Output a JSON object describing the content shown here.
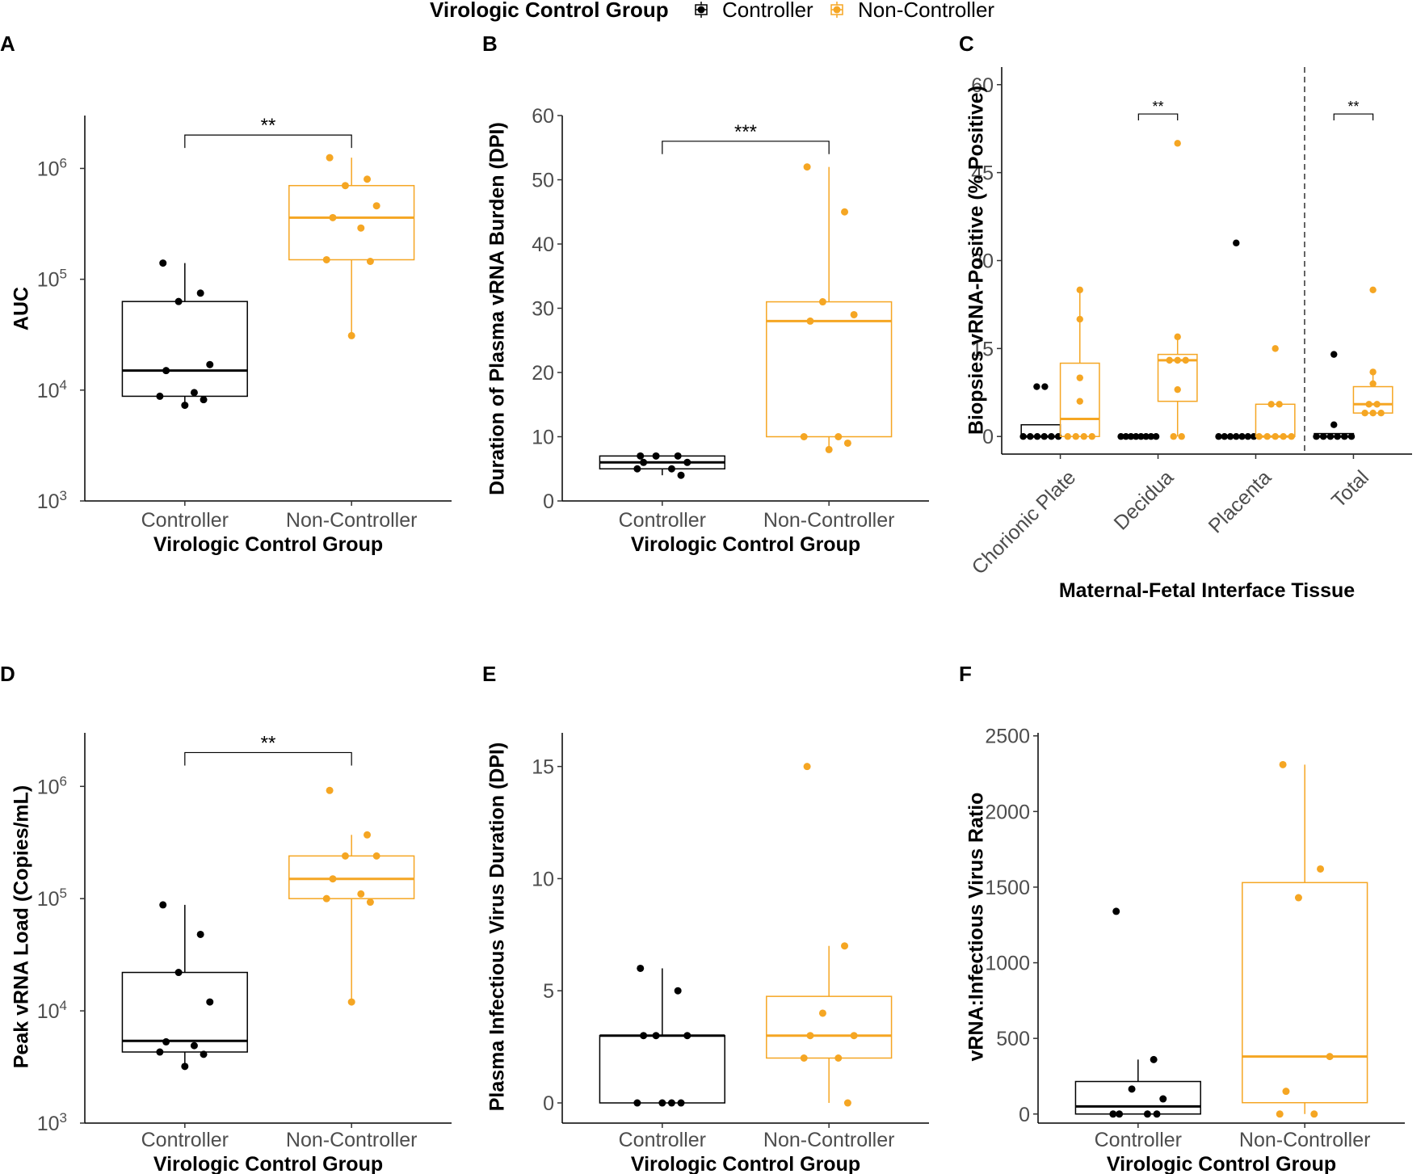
{
  "legend": {
    "title": "Virologic Control Group",
    "items": [
      {
        "label": "Controller",
        "color": "#000000"
      },
      {
        "label": "Non-Controller",
        "color": "#f5a623"
      }
    ]
  },
  "chart_data": [
    {
      "panel": "A",
      "type": "box",
      "scale": "log",
      "xlabel": "Virologic Control Group",
      "ylabel": "AUC",
      "ylim": [
        1000,
        3000000
      ],
      "yticks": [
        {
          "value": 1000,
          "base": "10",
          "exp": "3"
        },
        {
          "value": 10000,
          "base": "10",
          "exp": "4"
        },
        {
          "value": 100000,
          "base": "10",
          "exp": "5"
        },
        {
          "value": 1000000,
          "base": "10",
          "exp": "6"
        }
      ],
      "categories": [
        "Controller",
        "Non-Controller"
      ],
      "groups": [
        {
          "name": "Controller",
          "color": "#000000",
          "box": {
            "q1": 8800,
            "median": 15000,
            "q3": 63000,
            "whisker_low": 7300,
            "whisker_high": 140000
          },
          "points": [
            140000,
            75000,
            63000,
            17000,
            15000,
            9500,
            8800,
            8200,
            7300
          ]
        },
        {
          "name": "Non-Controller",
          "color": "#f5a623",
          "box": {
            "q1": 150000,
            "median": 360000,
            "q3": 700000,
            "whisker_low": 31000,
            "whisker_high": 1250000
          },
          "points": [
            1250000,
            800000,
            700000,
            460000,
            360000,
            290000,
            150000,
            145000,
            31000
          ]
        }
      ],
      "significance": [
        {
          "from": 0,
          "to": 1,
          "label": "**",
          "at": 2000000
        }
      ]
    },
    {
      "panel": "B",
      "type": "box",
      "scale": "linear",
      "xlabel": "Virologic Control Group",
      "ylabel": "Duration of Plasma vRNA Burden (DPI)",
      "ylim": [
        0,
        60
      ],
      "yticks": [
        0,
        10,
        20,
        30,
        40,
        50,
        60
      ],
      "categories": [
        "Controller",
        "Non-Controller"
      ],
      "groups": [
        {
          "name": "Controller",
          "color": "#000000",
          "box": {
            "q1": 5,
            "median": 6,
            "q3": 7,
            "whisker_low": 4,
            "whisker_high": 7
          },
          "points": [
            7,
            7,
            7,
            6,
            6,
            5,
            5,
            4
          ]
        },
        {
          "name": "Non-Controller",
          "color": "#f5a623",
          "box": {
            "q1": 10,
            "median": 28,
            "q3": 31,
            "whisker_low": 8,
            "whisker_high": 52
          },
          "points": [
            52,
            45,
            31,
            29,
            28,
            10,
            10,
            9,
            8
          ]
        }
      ],
      "significance": [
        {
          "from": 0,
          "to": 1,
          "label": "***",
          "at": 56
        }
      ]
    },
    {
      "panel": "C",
      "type": "box",
      "scale": "linear",
      "xlabel": "Maternal-Fetal Interface Tissue",
      "ylabel": "Biopsies vRNA-Positive (% Positive)",
      "ylim": [
        -3,
        63
      ],
      "yticks": [
        0,
        15,
        30,
        45,
        60
      ],
      "categories": [
        "Chorionic Plate",
        "Decidua",
        "Placenta",
        "Total"
      ],
      "divider_after": 2,
      "series": [
        {
          "name": "Controller",
          "color": "#000000",
          "boxes": [
            {
              "q1": 0,
              "median": 0,
              "q3": 2,
              "whisker_low": 0,
              "whisker_high": 2
            },
            {
              "q1": 0,
              "median": 0,
              "q3": 0,
              "whisker_low": 0,
              "whisker_high": 0
            },
            {
              "q1": 0,
              "median": 0,
              "q3": 0,
              "whisker_low": 0,
              "whisker_high": 0
            },
            {
              "q1": 0,
              "median": 0,
              "q3": 0.5,
              "whisker_low": 0,
              "whisker_high": 0.5
            }
          ],
          "points": [
            [
              8.5,
              8.5,
              0,
              0,
              0,
              0,
              0,
              0
            ],
            [
              0,
              0,
              0,
              0,
              0,
              0,
              0,
              0
            ],
            [
              33,
              0,
              0,
              0,
              0,
              0,
              0,
              0
            ],
            [
              14,
              2,
              0,
              0,
              0,
              0,
              0,
              0
            ]
          ]
        },
        {
          "name": "Non-Controller",
          "color": "#f5a623",
          "boxes": [
            {
              "q1": 0,
              "median": 3,
              "q3": 12.5,
              "whisker_low": 0,
              "whisker_high": 25
            },
            {
              "q1": 6,
              "median": 13,
              "q3": 14,
              "whisker_low": 0,
              "whisker_high": 17
            },
            {
              "q1": 0,
              "median": 0,
              "q3": 5.5,
              "whisker_low": 0,
              "whisker_high": 5.5
            },
            {
              "q1": 4,
              "median": 5.5,
              "q3": 8.5,
              "whisker_low": 3.5,
              "whisker_high": 11
            }
          ],
          "points": [
            [
              25,
              20,
              10,
              6,
              0,
              0,
              0,
              0
            ],
            [
              50,
              17,
              13,
              13,
              13,
              8,
              0,
              0
            ],
            [
              15,
              5.5,
              5.5,
              0,
              0,
              0,
              0,
              0
            ],
            [
              25,
              11,
              9,
              5.5,
              5.5,
              4,
              4,
              4
            ]
          ]
        }
      ],
      "significance": [
        {
          "category": 1,
          "label": "**",
          "at": 55
        },
        {
          "category": 3,
          "label": "**",
          "at": 55
        }
      ]
    },
    {
      "panel": "D",
      "type": "box",
      "scale": "log",
      "xlabel": "Virologic Control Group",
      "ylabel": "Peak vRNA Load (Copies/mL)",
      "ylim": [
        1000,
        3000000
      ],
      "yticks": [
        {
          "value": 1000,
          "base": "10",
          "exp": "3"
        },
        {
          "value": 10000,
          "base": "10",
          "exp": "4"
        },
        {
          "value": 100000,
          "base": "10",
          "exp": "5"
        },
        {
          "value": 1000000,
          "base": "10",
          "exp": "6"
        }
      ],
      "categories": [
        "Controller",
        "Non-Controller"
      ],
      "groups": [
        {
          "name": "Controller",
          "color": "#000000",
          "box": {
            "q1": 4300,
            "median": 5400,
            "q3": 22000,
            "whisker_low": 3200,
            "whisker_high": 88000
          },
          "points": [
            88000,
            48000,
            22000,
            12000,
            5300,
            4900,
            4300,
            4100,
            3200
          ]
        },
        {
          "name": "Non-Controller",
          "color": "#f5a623",
          "box": {
            "q1": 100000,
            "median": 150000,
            "q3": 240000,
            "whisker_low": 12000,
            "whisker_high": 370000
          },
          "points": [
            920000,
            370000,
            240000,
            240000,
            150000,
            110000,
            100000,
            93000,
            12000
          ]
        }
      ],
      "significance": [
        {
          "from": 0,
          "to": 1,
          "label": "**",
          "at": 2000000
        }
      ]
    },
    {
      "panel": "E",
      "type": "box",
      "scale": "linear",
      "xlabel": "Virologic Control Group",
      "ylabel": "Plasma Infectious Virus Duration (DPI)",
      "ylim": [
        -0.9,
        16.5
      ],
      "yticks": [
        0,
        5,
        10,
        15
      ],
      "categories": [
        "Controller",
        "Non-Controller"
      ],
      "groups": [
        {
          "name": "Controller",
          "color": "#000000",
          "box": {
            "q1": 0,
            "median": 3,
            "q3": 3,
            "whisker_low": 0,
            "whisker_high": 6
          },
          "points": [
            6,
            5,
            3,
            3,
            3,
            0,
            0,
            0,
            0
          ]
        },
        {
          "name": "Non-Controller",
          "color": "#f5a623",
          "box": {
            "q1": 2,
            "median": 3,
            "q3": 4.75,
            "whisker_low": 0,
            "whisker_high": 7
          },
          "points": [
            15,
            7,
            4,
            3,
            3,
            2,
            2,
            0
          ]
        }
      ],
      "significance": []
    },
    {
      "panel": "F",
      "type": "box",
      "scale": "linear",
      "xlabel": "Virologic Control Group",
      "ylabel": "vRNA:Infectious Virus Ratio",
      "ylim": [
        -60,
        2520
      ],
      "yticks": [
        0,
        500,
        1000,
        1500,
        2000,
        2500
      ],
      "categories": [
        "Controller",
        "Non-Controller"
      ],
      "groups": [
        {
          "name": "Controller",
          "color": "#000000",
          "box": {
            "q1": 0,
            "median": 50,
            "q3": 215,
            "whisker_low": 0,
            "whisker_high": 360
          },
          "points": [
            1340,
            360,
            165,
            100,
            0,
            0,
            0,
            0
          ]
        },
        {
          "name": "Non-Controller",
          "color": "#f5a623",
          "box": {
            "q1": 75,
            "median": 380,
            "q3": 1530,
            "whisker_low": 0,
            "whisker_high": 2310
          },
          "points": [
            2310,
            1620,
            1430,
            380,
            150,
            0,
            0
          ]
        }
      ],
      "significance": []
    }
  ]
}
